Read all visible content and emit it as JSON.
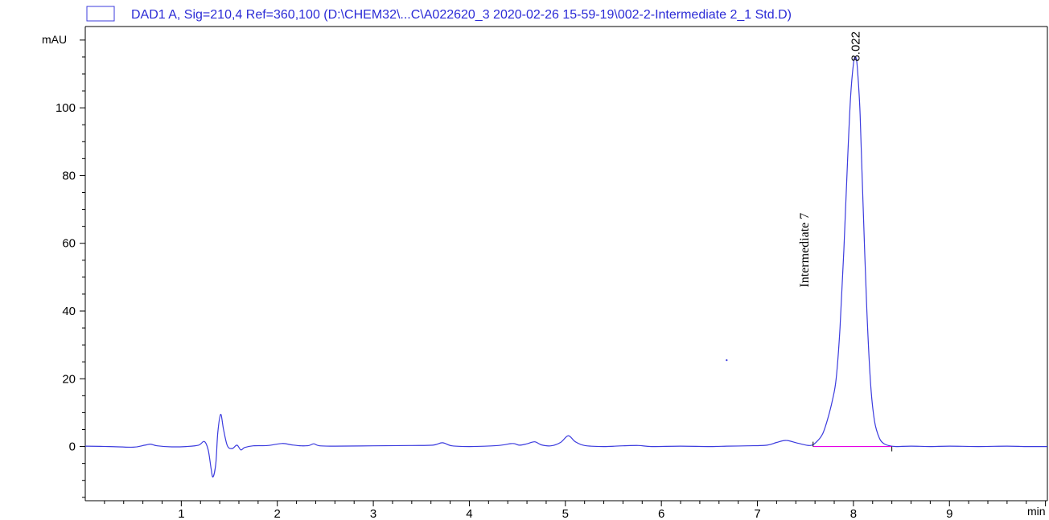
{
  "legend": {
    "text": "DAD1 A, Sig=210,4 Ref=360,100 (D:\\CHEM32\\...C\\A022620_3 2020-02-26 15-59-19\\002-2-Intermediate 2_1 Std.D)"
  },
  "colors": {
    "trace": "#3b3bde",
    "legend_text": "#2b2bd6",
    "baseline": "#e600e6",
    "axis": "#000000"
  },
  "chart_data": {
    "type": "line",
    "title": "",
    "xlabel": "min",
    "ylabel": "mAU",
    "xlim": [
      0,
      10.02
    ],
    "ylim": [
      -16,
      124
    ],
    "x_ticks": [
      1,
      2,
      3,
      4,
      5,
      6,
      7,
      8,
      9
    ],
    "x_tick_labels": [
      "1",
      "2",
      "3",
      "4",
      "5",
      "6",
      "7",
      "8",
      "9"
    ],
    "y_ticks": [
      0,
      20,
      40,
      60,
      80,
      100
    ],
    "y_tick_labels": [
      "0",
      "20",
      "40",
      "60",
      "80",
      "100"
    ],
    "grid": false,
    "series": [
      {
        "name": "DAD1 A, Sig=210,4 Ref=360,100",
        "x": [
          0.0,
          0.25,
          0.5,
          0.62,
          0.68,
          0.75,
          0.9,
          1.05,
          1.18,
          1.24,
          1.28,
          1.31,
          1.33,
          1.36,
          1.38,
          1.41,
          1.44,
          1.48,
          1.53,
          1.58,
          1.62,
          1.66,
          1.75,
          1.9,
          2.05,
          2.15,
          2.25,
          2.33,
          2.38,
          2.44,
          2.6,
          3.0,
          3.4,
          3.62,
          3.72,
          3.82,
          4.0,
          4.3,
          4.45,
          4.52,
          4.6,
          4.68,
          4.75,
          4.85,
          4.95,
          5.03,
          5.1,
          5.2,
          5.4,
          5.6,
          5.76,
          5.9,
          6.2,
          6.5,
          6.68,
          6.9,
          7.1,
          7.2,
          7.3,
          7.42,
          7.55,
          7.62,
          7.68,
          7.73,
          7.78,
          7.82,
          7.86,
          7.9,
          7.94,
          7.97,
          8.0,
          8.022,
          8.04,
          8.07,
          8.1,
          8.14,
          8.18,
          8.22,
          8.27,
          8.32,
          8.38,
          8.45,
          8.6,
          8.8,
          9.0,
          9.3,
          9.6,
          9.8,
          10.02
        ],
        "y": [
          0.1,
          0.0,
          -0.2,
          0.4,
          0.7,
          0.2,
          -0.1,
          0.0,
          0.4,
          1.5,
          -1.0,
          -6.5,
          -9.0,
          -5.0,
          4.0,
          9.5,
          5.0,
          0.2,
          -0.6,
          0.4,
          -1.0,
          -0.3,
          0.2,
          0.3,
          0.9,
          0.5,
          0.2,
          0.3,
          0.8,
          0.2,
          0.1,
          0.2,
          0.3,
          0.4,
          1.1,
          0.2,
          0.0,
          0.3,
          0.9,
          0.4,
          0.8,
          1.4,
          0.5,
          0.2,
          1.2,
          3.2,
          1.5,
          0.3,
          0.0,
          0.2,
          0.3,
          0.0,
          0.1,
          0.0,
          0.1,
          0.2,
          0.4,
          1.2,
          1.8,
          1.0,
          0.3,
          1.5,
          3.8,
          8.0,
          13.5,
          20.0,
          35.0,
          58.0,
          85.0,
          103.0,
          113.0,
          115.0,
          112.0,
          98.0,
          72.0,
          40.0,
          18.0,
          7.5,
          2.5,
          0.8,
          0.2,
          0.0,
          0.1,
          0.0,
          0.1,
          0.0,
          0.1,
          0.0,
          0.0
        ]
      }
    ],
    "baseline_segment": {
      "x": [
        7.58,
        8.4
      ],
      "y": [
        0.0,
        0.0
      ]
    },
    "peak_label": {
      "text": "8.022",
      "x": 8.022
    },
    "annotation": {
      "text": "Intermediate 7",
      "x": 7.55,
      "y": 58
    },
    "marker_dot": {
      "x": 6.68,
      "y": 25.5
    }
  }
}
